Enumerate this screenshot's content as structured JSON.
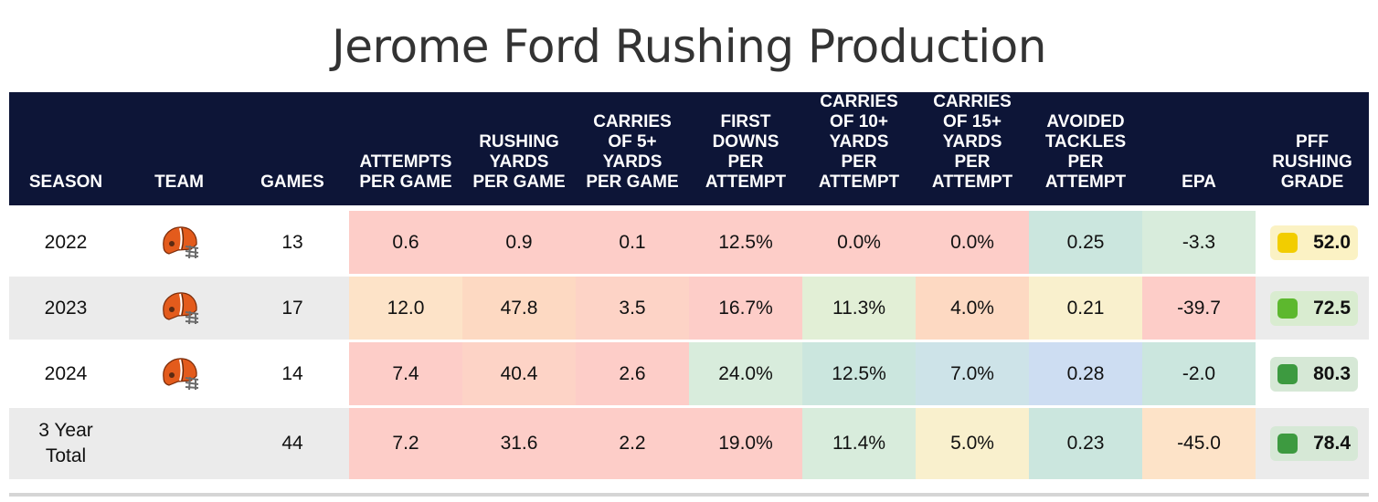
{
  "title": "Jerome Ford Rushing Production",
  "headers": {
    "season": "SEASON",
    "team": "TEAM",
    "games": "GAMES",
    "att": [
      "ATTEMPTS",
      "PER GAME"
    ],
    "yds": [
      "RUSHING",
      "YARDS",
      "PER GAME"
    ],
    "c5": [
      "CARRIES",
      "OF 5+",
      "YARDS",
      "PER GAME"
    ],
    "fd": [
      "FIRST",
      "DOWNS",
      "PER",
      "ATTEMPT"
    ],
    "c10": [
      "CARRIES",
      "OF 10+",
      "YARDS",
      "PER",
      "ATTEMPT"
    ],
    "c15": [
      "CARRIES",
      "OF 15+",
      "YARDS",
      "PER",
      "ATTEMPT"
    ],
    "at": [
      "AVOIDED",
      "TACKLES",
      "PER",
      "ATTEMPT"
    ],
    "epa": "EPA",
    "grade": [
      "PFF",
      "RUSHING",
      "GRADE"
    ]
  },
  "colors": {
    "header_bg": "#0d1537",
    "grade_yellow": "#f2cd00",
    "grade_green_light": "#5db82e",
    "grade_green": "#3d9a40"
  },
  "icons": {
    "team": "cleveland-browns-helmet-icon"
  },
  "chart_data": {
    "type": "table",
    "title": "Jerome Ford Rushing Production",
    "columns": [
      "SEASON",
      "TEAM",
      "GAMES",
      "ATTEMPTS PER GAME",
      "RUSHING YARDS PER GAME",
      "CARRIES OF 5+ YARDS PER GAME",
      "FIRST DOWNS PER ATTEMPT",
      "CARRIES OF 10+ YARDS PER ATTEMPT",
      "CARRIES OF 15+ YARDS PER ATTEMPT",
      "AVOIDED TACKLES PER ATTEMPT",
      "EPA",
      "PFF RUSHING GRADE"
    ],
    "rows": [
      {
        "season": "2022",
        "team": "cleveland-browns-helmet-icon",
        "games": "13",
        "att": "0.6",
        "yds": "0.9",
        "c5": "0.1",
        "fd": "12.5%",
        "c10": "0.0%",
        "c15": "0.0%",
        "at": "0.25",
        "epa": "-3.3",
        "grade": "52.0",
        "bg": {
          "att": "#fdcdc8",
          "yds": "#fdcdc8",
          "c5": "#fdcdc8",
          "fd": "#fdcdc8",
          "c10": "#fdcdc8",
          "c15": "#fdcdc8",
          "at": "#cbe6de",
          "epa": "#d8ecdc"
        },
        "grade_bg": "#fbf2c4",
        "grade_dot": "#f2cd00"
      },
      {
        "season": "2023",
        "team": "cleveland-browns-helmet-icon",
        "games": "17",
        "att": "12.0",
        "yds": "47.8",
        "c5": "3.5",
        "fd": "16.7%",
        "c10": "11.3%",
        "c15": "4.0%",
        "at": "0.21",
        "epa": "-39.7",
        "grade": "72.5",
        "bg": {
          "att": "#fde3c8",
          "yds": "#fdd9c2",
          "c5": "#fdd3c6",
          "fd": "#fdcdc8",
          "c10": "#e2efd6",
          "c15": "#fdd9c2",
          "at": "#f9f0cd",
          "epa": "#fdcdc8"
        },
        "grade_bg": "#d9ecd0",
        "grade_dot": "#5db82e"
      },
      {
        "season": "2024",
        "team": "cleveland-browns-helmet-icon",
        "games": "14",
        "att": "7.4",
        "yds": "40.4",
        "c5": "2.6",
        "fd": "24.0%",
        "c10": "12.5%",
        "c15": "7.0%",
        "at": "0.28",
        "epa": "-2.0",
        "grade": "80.3",
        "bg": {
          "att": "#fdcdc8",
          "yds": "#fdd3c6",
          "c5": "#fdcdc8",
          "fd": "#d8ecdc",
          "c10": "#cbe6de",
          "c15": "#cde3e8",
          "at": "#cdddf2",
          "epa": "#cbe6de"
        },
        "grade_bg": "#d6e8d6",
        "grade_dot": "#3d9a40"
      },
      {
        "season": "3 Year Total",
        "team": "",
        "games": "44",
        "att": "7.2",
        "yds": "31.6",
        "c5": "2.2",
        "fd": "19.0%",
        "c10": "11.4%",
        "c15": "5.0%",
        "at": "0.23",
        "epa": "-45.0",
        "grade": "78.4",
        "bg": {
          "att": "#fdcdc8",
          "yds": "#fdcdc8",
          "c5": "#fdcdc8",
          "fd": "#fdcdc8",
          "c10": "#d8ecdc",
          "c15": "#f9f0cd",
          "at": "#cbe6de",
          "epa": "#fde3c8"
        },
        "grade_bg": "#d6e8d6",
        "grade_dot": "#3d9a40"
      }
    ]
  }
}
